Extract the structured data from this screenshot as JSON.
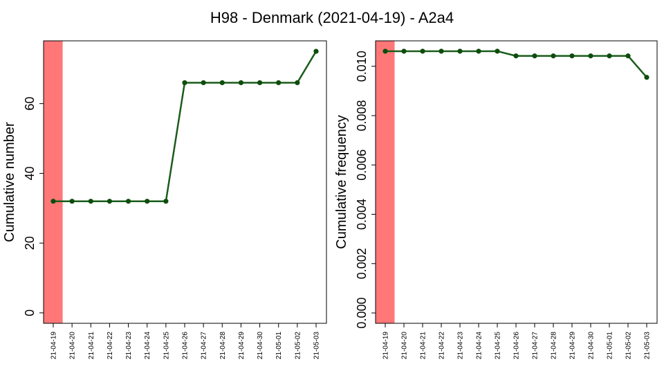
{
  "figure": {
    "title": "H98 - Denmark (2021-04-19) - A2a4"
  },
  "colors": {
    "line": "#1a5c1a",
    "point": "#0d4d0d",
    "highlight": "#ff7777",
    "axis": "#000000"
  },
  "chart_data": [
    {
      "type": "line",
      "title": "",
      "xlabel": "",
      "ylabel": "Cumulative number",
      "categories": [
        "21-04-19",
        "21-04-20",
        "21-04-21",
        "21-04-22",
        "21-04-23",
        "21-04-24",
        "21-04-25",
        "21-04-26",
        "21-04-27",
        "21-04-28",
        "21-04-29",
        "21-04-30",
        "21-05-01",
        "21-05-02",
        "21-05-03"
      ],
      "values": [
        32,
        32,
        32,
        32,
        32,
        32,
        32,
        66,
        66,
        66,
        66,
        66,
        66,
        66,
        75
      ],
      "yticks": [
        0,
        20,
        40,
        60
      ],
      "ytick_labels": [
        "0",
        "20",
        "40",
        "60"
      ],
      "ylim": [
        -3.0,
        78.0
      ],
      "highlight_category": "21-04-19",
      "grid": false
    },
    {
      "type": "line",
      "title": "",
      "xlabel": "",
      "ylabel": "Cumulative frequency",
      "categories": [
        "21-04-19",
        "21-04-20",
        "21-04-21",
        "21-04-22",
        "21-04-23",
        "21-04-24",
        "21-04-25",
        "21-04-26",
        "21-04-27",
        "21-04-28",
        "21-04-29",
        "21-04-30",
        "21-05-01",
        "21-05-02",
        "21-05-03"
      ],
      "values": [
        0.01061,
        0.01061,
        0.01061,
        0.01061,
        0.01061,
        0.01061,
        0.01061,
        0.01042,
        0.01042,
        0.01042,
        0.01042,
        0.01042,
        0.01042,
        0.01042,
        0.00955
      ],
      "yticks": [
        0,
        0.002,
        0.004,
        0.006,
        0.008,
        0.01
      ],
      "ytick_labels": [
        "0.000",
        "0.002",
        "0.004",
        "0.006",
        "0.008",
        "0.010"
      ],
      "ylim": [
        -0.00042,
        0.01103
      ],
      "highlight_category": "21-04-19",
      "grid": false
    }
  ]
}
